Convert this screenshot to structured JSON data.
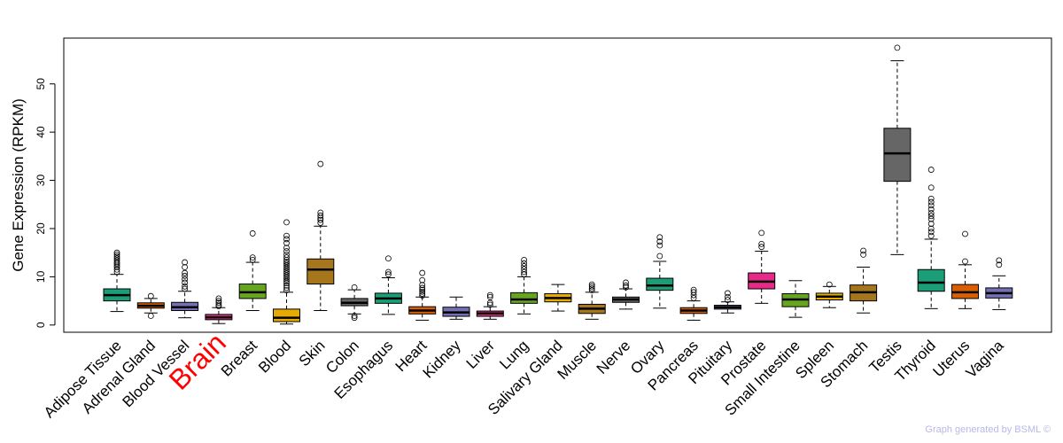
{
  "chart_data": {
    "type": "box",
    "ylabel": "Gene Expression (RPKM)",
    "xlabel": "",
    "title": "",
    "ylim": [
      -1.5,
      59.5
    ],
    "yticks": [
      0,
      10,
      20,
      30,
      40,
      50
    ],
    "highlight_category": "Brain",
    "highlight_color": "#ff0000",
    "footer": "Graph generated by BSML ©",
    "categories": [
      {
        "name": "Adipose Tissue",
        "color": "#1b9e77",
        "q1": 5.0,
        "median": 6.2,
        "q3": 7.5,
        "whisker_low": 2.8,
        "whisker_high": 10.5,
        "outliers": [
          11.0,
          11.5,
          12.0,
          12.3,
          12.7,
          13.0,
          13.4,
          13.8,
          14.2,
          14.6,
          15.0
        ]
      },
      {
        "name": "Adrenal Gland",
        "color": "#d95f02",
        "q1": 3.5,
        "median": 4.0,
        "q3": 4.6,
        "whisker_low": 2.5,
        "whisker_high": 5.5,
        "outliers": [
          1.9,
          6.0
        ]
      },
      {
        "name": "Blood Vessel",
        "color": "#7570b3",
        "q1": 3.0,
        "median": 3.7,
        "q3": 4.7,
        "whisker_low": 1.5,
        "whisker_high": 7.0,
        "outliers": [
          7.5,
          8.0,
          8.8,
          9.5,
          10.2,
          10.8,
          12.0,
          13.0
        ]
      },
      {
        "name": "Brain",
        "color": "#e7298a",
        "q1": 1.1,
        "median": 1.6,
        "q3": 2.2,
        "whisker_low": 0.3,
        "whisker_high": 3.6,
        "outliers": [
          3.9,
          4.2,
          4.6,
          5.0,
          5.5
        ]
      },
      {
        "name": "Breast",
        "color": "#66a61e",
        "q1": 5.5,
        "median": 6.8,
        "q3": 8.5,
        "whisker_low": 3.0,
        "whisker_high": 13.0,
        "outliers": [
          13.5,
          14.0,
          19.0
        ]
      },
      {
        "name": "Blood",
        "color": "#e6ab02",
        "q1": 0.7,
        "median": 1.5,
        "q3": 3.3,
        "whisker_low": 0.2,
        "whisker_high": 6.8,
        "outliers": [
          7.2,
          7.7,
          8.2,
          8.7,
          9.1,
          9.5,
          9.9,
          10.3,
          10.7,
          11.1,
          11.5,
          11.9,
          12.3,
          12.7,
          13.1,
          13.5,
          14.0,
          14.6,
          15.3,
          16.0,
          17.0,
          17.8,
          18.5,
          21.3
        ]
      },
      {
        "name": "Skin",
        "color": "#a6761d",
        "q1": 8.5,
        "median": 11.5,
        "q3": 13.7,
        "whisker_low": 3.0,
        "whisker_high": 20.5,
        "outliers": [
          21.2,
          21.8,
          22.2,
          22.7,
          23.3,
          33.4
        ]
      },
      {
        "name": "Colon",
        "color": "#666666",
        "q1": 4.0,
        "median": 4.6,
        "q3": 5.5,
        "whisker_low": 2.3,
        "whisker_high": 7.3,
        "outliers": [
          7.8,
          1.9,
          1.5
        ]
      },
      {
        "name": "Esophagus",
        "color": "#1b9e77",
        "q1": 4.5,
        "median": 5.5,
        "q3": 6.6,
        "whisker_low": 2.2,
        "whisker_high": 9.8,
        "outliers": [
          10.5,
          11.0,
          13.8
        ]
      },
      {
        "name": "Heart",
        "color": "#d95f02",
        "q1": 2.3,
        "median": 3.0,
        "q3": 3.8,
        "whisker_low": 1.0,
        "whisker_high": 5.8,
        "outliers": [
          6.1,
          6.5,
          6.9,
          7.3,
          7.7,
          8.3,
          9.3,
          10.8
        ]
      },
      {
        "name": "Kidney",
        "color": "#7570b3",
        "q1": 1.8,
        "median": 2.6,
        "q3": 3.7,
        "whisker_low": 1.2,
        "whisker_high": 5.8,
        "outliers": []
      },
      {
        "name": "Liver",
        "color": "#e7298a",
        "q1": 1.8,
        "median": 2.4,
        "q3": 2.9,
        "whisker_low": 1.2,
        "whisker_high": 3.8,
        "outliers": [
          4.2,
          4.6,
          5.8,
          6.2
        ]
      },
      {
        "name": "Lung",
        "color": "#66a61e",
        "q1": 4.5,
        "median": 5.3,
        "q3": 6.7,
        "whisker_low": 2.3,
        "whisker_high": 10.0,
        "outliers": [
          10.5,
          11.0,
          11.6,
          12.2,
          12.8,
          13.5
        ]
      },
      {
        "name": "Salivary Gland",
        "color": "#e6ab02",
        "q1": 4.8,
        "median": 5.6,
        "q3": 6.5,
        "whisker_low": 2.9,
        "whisker_high": 8.4,
        "outliers": []
      },
      {
        "name": "Muscle",
        "color": "#a6761d",
        "q1": 2.4,
        "median": 3.4,
        "q3": 4.3,
        "whisker_low": 1.2,
        "whisker_high": 6.8,
        "outliers": [
          7.2,
          7.6,
          8.0,
          8.4
        ]
      },
      {
        "name": "Nerve",
        "color": "#666666",
        "q1": 4.7,
        "median": 5.3,
        "q3": 5.8,
        "whisker_low": 3.3,
        "whisker_high": 7.5,
        "outliers": [
          7.8,
          8.2,
          8.8
        ]
      },
      {
        "name": "Ovary",
        "color": "#1b9e77",
        "q1": 7.2,
        "median": 8.2,
        "q3": 9.7,
        "whisker_low": 3.5,
        "whisker_high": 13.2,
        "outliers": [
          14.3,
          16.5,
          17.3,
          18.2
        ]
      },
      {
        "name": "Pancreas",
        "color": "#d95f02",
        "q1": 2.4,
        "median": 3.0,
        "q3": 3.6,
        "whisker_low": 1.0,
        "whisker_high": 5.0,
        "outliers": [
          5.6,
          6.2,
          6.8,
          7.3
        ]
      },
      {
        "name": "Pituitary",
        "color": "#7570b3",
        "q1": 3.3,
        "median": 3.7,
        "q3": 4.1,
        "whisker_low": 2.5,
        "whisker_high": 4.8,
        "outliers": [
          5.2,
          5.8,
          6.6
        ]
      },
      {
        "name": "Prostate",
        "color": "#e7298a",
        "q1": 7.5,
        "median": 9.0,
        "q3": 10.8,
        "whisker_low": 4.5,
        "whisker_high": 15.3,
        "outliers": [
          16.2,
          16.8,
          19.1
        ]
      },
      {
        "name": "Small Intestine",
        "color": "#66a61e",
        "q1": 3.8,
        "median": 5.3,
        "q3": 6.5,
        "whisker_low": 1.6,
        "whisker_high": 9.2,
        "outliers": []
      },
      {
        "name": "Spleen",
        "color": "#e6ab02",
        "q1": 5.2,
        "median": 5.9,
        "q3": 6.6,
        "whisker_low": 3.6,
        "whisker_high": 8.0,
        "outliers": [
          8.4
        ]
      },
      {
        "name": "Stomach",
        "color": "#a6761d",
        "q1": 5.0,
        "median": 6.8,
        "q3": 8.3,
        "whisker_low": 2.5,
        "whisker_high": 12.0,
        "outliers": [
          14.6,
          15.4
        ]
      },
      {
        "name": "Testis",
        "color": "#666666",
        "q1": 29.8,
        "median": 35.6,
        "q3": 40.8,
        "whisker_low": 14.6,
        "whisker_high": 54.8,
        "outliers": [
          57.5
        ]
      },
      {
        "name": "Thyroid",
        "color": "#1b9e77",
        "q1": 7.0,
        "median": 8.8,
        "q3": 11.5,
        "whisker_low": 3.4,
        "whisker_high": 17.8,
        "outliers": [
          18.5,
          19.3,
          20.0,
          21.0,
          22.0,
          22.6,
          23.2,
          24.0,
          24.8,
          25.5,
          26.2,
          28.5,
          32.2
        ]
      },
      {
        "name": "Uterus",
        "color": "#d95f02",
        "q1": 5.5,
        "median": 6.8,
        "q3": 8.4,
        "whisker_low": 3.4,
        "whisker_high": 12.5,
        "outliers": [
          13.2,
          18.9
        ]
      },
      {
        "name": "Vagina",
        "color": "#7570b3",
        "q1": 5.6,
        "median": 6.6,
        "q3": 7.7,
        "whisker_low": 3.2,
        "whisker_high": 10.2,
        "outliers": [
          12.5,
          13.4
        ]
      }
    ]
  }
}
